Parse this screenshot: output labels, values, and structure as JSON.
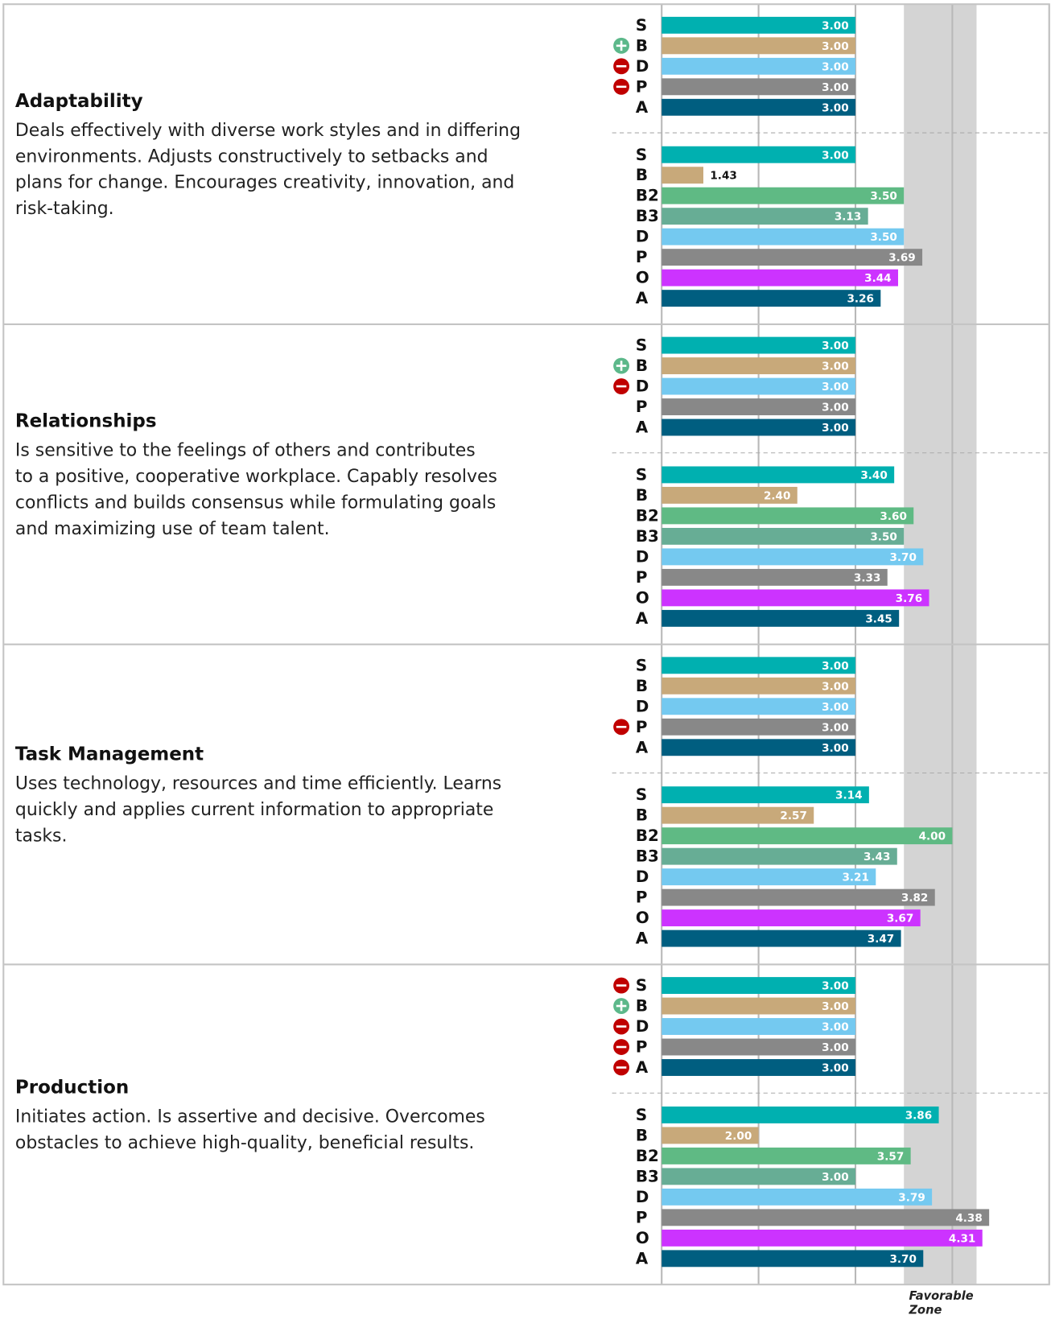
{
  "chart_data": {
    "type": "bar",
    "orientation": "horizontal",
    "xlim": [
      1,
      5
    ],
    "xticks": [
      1,
      2,
      3,
      4,
      5
    ],
    "grid": true,
    "favorable_zone": {
      "label": "Favorable Zone",
      "range": [
        3.5,
        4.25
      ]
    },
    "colors": {
      "S": "#00b0b0",
      "B": "#c8a97a",
      "B2": "#5fba84",
      "B3": "#67ad95",
      "D": "#74c9f0",
      "P": "#888888",
      "O": "#cc33ff",
      "A": "#005e80"
    },
    "sections": [
      {
        "title": "Adaptability",
        "description": [
          "Deals effectively with diverse work styles and in differing",
          "environments. Adjusts constructively to setbacks and",
          "plans for change. Encourages creativity, innovation, and",
          "risk-taking."
        ],
        "groups": [
          [
            {
              "label": "S",
              "value": 3,
              "value_label": "3.00"
            },
            {
              "label": "B",
              "value": 3,
              "value_label": "3.00",
              "marker": "plus"
            },
            {
              "label": "D",
              "value": 3,
              "value_label": "3.00",
              "marker": "minus"
            },
            {
              "label": "P",
              "value": 3,
              "value_label": "3.00",
              "marker": "minus"
            },
            {
              "label": "A",
              "value": 3,
              "value_label": "3.00"
            }
          ],
          [
            {
              "label": "S",
              "value": 3,
              "value_label": "3.00"
            },
            {
              "label": "B",
              "value": 1.43
            },
            {
              "label": "B2",
              "value": 3.5,
              "value_label": "3.50"
            },
            {
              "label": "B3",
              "value": 3.13
            },
            {
              "label": "D",
              "value": 3.5,
              "value_label": "3.50"
            },
            {
              "label": "P",
              "value": 3.69
            },
            {
              "label": "O",
              "value": 3.44
            },
            {
              "label": "A",
              "value": 3.26
            }
          ]
        ]
      },
      {
        "title": "Relationships",
        "description": [
          "Is sensitive to the feelings of others and contributes",
          "to a positive, cooperative workplace. Capably resolves",
          "conflicts and builds consensus while formulating goals",
          "and maximizing use of team talent."
        ],
        "groups": [
          [
            {
              "label": "S",
              "value": 3,
              "value_label": "3.00"
            },
            {
              "label": "B",
              "value": 3,
              "value_label": "3.00",
              "marker": "plus"
            },
            {
              "label": "D",
              "value": 3,
              "value_label": "3.00",
              "marker": "minus"
            },
            {
              "label": "P",
              "value": 3,
              "value_label": "3.00"
            },
            {
              "label": "A",
              "value": 3,
              "value_label": "3.00"
            }
          ],
          [
            {
              "label": "S",
              "value": 3.4,
              "value_label": "3.40"
            },
            {
              "label": "B",
              "value": 2.4,
              "value_label": "2.40"
            },
            {
              "label": "B2",
              "value": 3.6,
              "value_label": "3.60"
            },
            {
              "label": "B3",
              "value": 3.5,
              "value_label": "3.50"
            },
            {
              "label": "D",
              "value": 3.7,
              "value_label": "3.70"
            },
            {
              "label": "P",
              "value": 3.33
            },
            {
              "label": "O",
              "value": 3.76
            },
            {
              "label": "A",
              "value": 3.45
            }
          ]
        ]
      },
      {
        "title": "Task Management",
        "description": [
          "Uses technology, resources and time efficiently. Learns",
          "quickly and applies current information to appropriate",
          "tasks."
        ],
        "groups": [
          [
            {
              "label": "S",
              "value": 3,
              "value_label": "3.00"
            },
            {
              "label": "B",
              "value": 3,
              "value_label": "3.00"
            },
            {
              "label": "D",
              "value": 3,
              "value_label": "3.00"
            },
            {
              "label": "P",
              "value": 3,
              "value_label": "3.00",
              "marker": "minus"
            },
            {
              "label": "A",
              "value": 3,
              "value_label": "3.00"
            }
          ],
          [
            {
              "label": "S",
              "value": 3.14
            },
            {
              "label": "B",
              "value": 2.57
            },
            {
              "label": "B2",
              "value": 4,
              "value_label": "4.00"
            },
            {
              "label": "B3",
              "value": 3.43
            },
            {
              "label": "D",
              "value": 3.21
            },
            {
              "label": "P",
              "value": 3.82
            },
            {
              "label": "O",
              "value": 3.67
            },
            {
              "label": "A",
              "value": 3.47
            }
          ]
        ]
      },
      {
        "title": "Production",
        "description": [
          "Initiates action. Is assertive and decisive. Overcomes",
          "obstacles to achieve high-quality, beneficial results."
        ],
        "groups": [
          [
            {
              "label": "S",
              "value": 3,
              "value_label": "3.00",
              "marker": "minus"
            },
            {
              "label": "B",
              "value": 3,
              "value_label": "3.00",
              "marker": "plus"
            },
            {
              "label": "D",
              "value": 3,
              "value_label": "3.00",
              "marker": "minus"
            },
            {
              "label": "P",
              "value": 3,
              "value_label": "3.00",
              "marker": "minus"
            },
            {
              "label": "A",
              "value": 3,
              "value_label": "3.00",
              "marker": "minus"
            }
          ],
          [
            {
              "label": "S",
              "value": 3.86
            },
            {
              "label": "B",
              "value": 2,
              "value_label": "2.00"
            },
            {
              "label": "B2",
              "value": 3.57
            },
            {
              "label": "B3",
              "value": 3,
              "value_label": "3.00"
            },
            {
              "label": "D",
              "value": 3.79
            },
            {
              "label": "P",
              "value": 4.38
            },
            {
              "label": "O",
              "value": 4.31
            },
            {
              "label": "A",
              "value": 3.7,
              "value_label": "3.70"
            }
          ]
        ]
      }
    ]
  }
}
